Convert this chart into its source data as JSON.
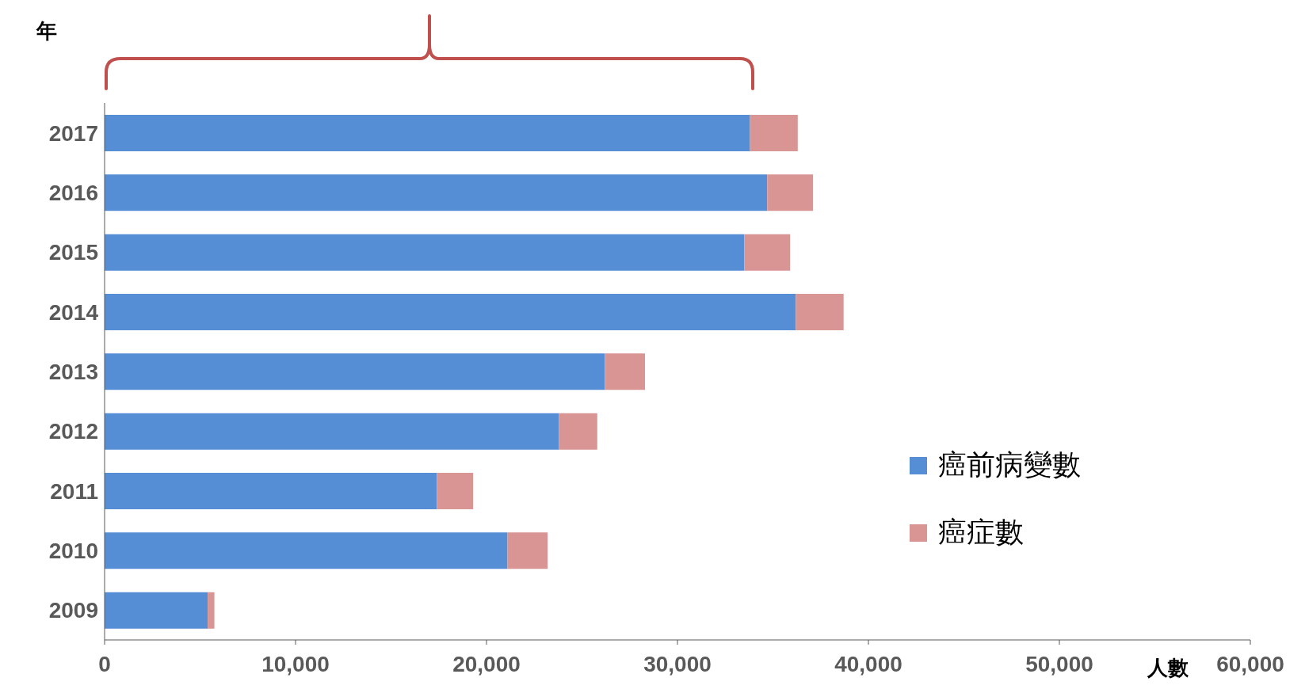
{
  "chart_data": {
    "type": "bar",
    "orientation": "horizontal",
    "stacked": true,
    "ylabel": "年",
    "xlabel": "人數",
    "categories": [
      "2017",
      "2016",
      "2015",
      "2014",
      "2013",
      "2012",
      "2011",
      "2010",
      "2009"
    ],
    "series": [
      {
        "name": "癌前病變數",
        "color": "#558ed5",
        "values": [
          33800,
          34700,
          33500,
          36200,
          26200,
          23800,
          17400,
          21100,
          5400
        ]
      },
      {
        "name": "癌症數",
        "color": "#d99594",
        "values": [
          2500,
          2400,
          2400,
          2500,
          2100,
          2000,
          1900,
          2100,
          350
        ]
      }
    ],
    "xlim": [
      0,
      60000
    ],
    "xticks": [
      0,
      {
        "value": 10000,
        "label": "10,000"
      },
      {
        "value": 20000,
        "label": "20,000"
      },
      {
        "value": 30000,
        "label": "30,000"
      },
      {
        "value": 40000,
        "label": "40,000"
      },
      {
        "value": 50000,
        "label": "50,000"
      },
      {
        "value": 60000,
        "label": "60,000"
      }
    ],
    "legend": "right"
  }
}
